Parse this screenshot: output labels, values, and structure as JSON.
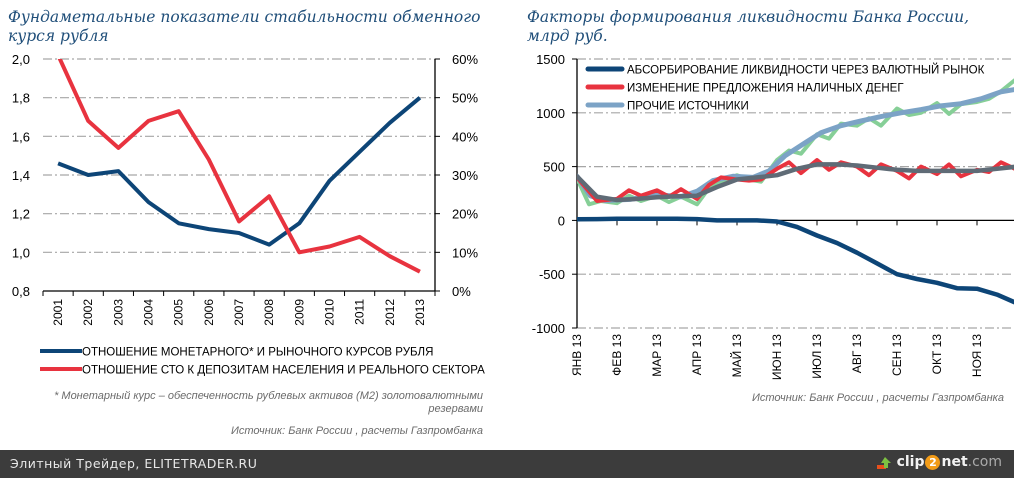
{
  "charts": {
    "left_title": "Фундаметальные показатели стабильности обменного курся рубля",
    "right_title": "Факторы формирования ликвидности Банка России, млрд руб.",
    "footnote": "* Монетарный курс – обеспеченность рублевых активов (М2) золотовалютными резервами",
    "source_left": "Источник: Банк России , расчеты Газпромбанка",
    "source_right": "Источник: Банк России , расчеты Газпромбанка"
  },
  "footer": {
    "site_label": "Элитный Трейдер, ELITETRADER.RU",
    "brand_clip": "clip",
    "brand_two": "2",
    "brand_net": "net",
    "brand_com": ".com"
  },
  "chart_data": [
    {
      "type": "line",
      "title": "Фундаметальные показатели стабильности обменного курся рубля",
      "categories": [
        "2001",
        "2002",
        "2003",
        "2004",
        "2005",
        "2006",
        "2007",
        "2008",
        "2009",
        "2010",
        "2011",
        "2012",
        "2013"
      ],
      "y_left": {
        "ylim": [
          0.8,
          2.0
        ],
        "ticks": [
          "0,8",
          "1,0",
          "1,2",
          "1,4",
          "1,6",
          "1,8",
          "2,0"
        ],
        "tick_values": [
          0.8,
          1.0,
          1.2,
          1.4,
          1.6,
          1.8,
          2.0
        ]
      },
      "y_right": {
        "ylim": [
          0,
          60
        ],
        "ticks": [
          "0%",
          "10%",
          "20%",
          "30%",
          "40%",
          "50%",
          "60%"
        ],
        "tick_values": [
          0,
          10,
          20,
          30,
          40,
          50,
          60
        ]
      },
      "grid": true,
      "legend_position": "bottom",
      "series": [
        {
          "name": "ОТНОШЕНИЕ МОНЕТАРНОГО* И РЫНОЧНОГО КУРСОВ РУБЛЯ",
          "axis": "left",
          "color": "#0d4577",
          "values": [
            1.46,
            1.4,
            1.42,
            1.26,
            1.15,
            1.12,
            1.1,
            1.04,
            1.15,
            1.37,
            1.52,
            1.67,
            1.8
          ]
        },
        {
          "name": "ОТНОШЕНИЕ СТО К ДЕПОЗИТАМ НАСЕЛЕНИЯ И РЕАЛЬНОГО СЕКТОРА",
          "axis": "right",
          "color": "#e8333f",
          "values": [
            61,
            44,
            37,
            44,
            46.5,
            34,
            18,
            24.5,
            10,
            11.5,
            14,
            9,
            5
          ]
        }
      ]
    },
    {
      "type": "line",
      "title": "Факторы формирования ликвидности Банка России, млрд руб.",
      "categories": [
        "ЯНВ 13",
        "ФЕВ 13",
        "МАР 13",
        "АПР 13",
        "МАЙ 13",
        "ИЮН 13",
        "ИЮЛ 13",
        "АВГ 13",
        "СЕН 13",
        "ОКТ 13",
        "НОЯ 13"
      ],
      "x_range": [
        0,
        11
      ],
      "ylim": [
        -1000,
        1500
      ],
      "yticks": [
        "-1000",
        "-500",
        "0",
        "500",
        "1000",
        "1500"
      ],
      "ytick_values": [
        -1000,
        -500,
        0,
        500,
        1000,
        1500
      ],
      "grid": true,
      "legend_position": "top-left",
      "series": [
        {
          "name": "АБСОРБИРОВАНИЕ ЛИКВИДНОСТИ ЧЕРЕЗ ВАЛЮТНЫЙ РЫНОК",
          "color": "#0d4577",
          "legend": true,
          "x": [
            0,
            0.5,
            1,
            1.5,
            2,
            2.5,
            3,
            3.5,
            4,
            4.5,
            5,
            5.5,
            6,
            6.5,
            7,
            7.5,
            8,
            8.5,
            9,
            9.5,
            10,
            10.5,
            11
          ],
          "values": [
            10,
            12,
            15,
            15,
            15,
            15,
            12,
            0,
            0,
            0,
            -10,
            -60,
            -140,
            -210,
            -300,
            -400,
            -500,
            -545,
            -580,
            -630,
            -635,
            -690,
            -770
          ]
        },
        {
          "name": "ИЗМЕНЕНИЕ ПРЕДЛОЖЕНИЯ НАЛИЧНЫХ ДЕНЕГ",
          "color": "#e8333f",
          "legend": true,
          "x": [
            0,
            0.5,
            1,
            1.3,
            1.6,
            2,
            2.3,
            2.6,
            3,
            3.3,
            3.6,
            4,
            4.3,
            4.6,
            5,
            5.3,
            5.6,
            6,
            6.3,
            6.6,
            7,
            7.3,
            7.6,
            8,
            8.3,
            8.6,
            9,
            9.3,
            9.6,
            10,
            10.3,
            10.6,
            11
          ],
          "values": [
            400,
            180,
            200,
            280,
            230,
            280,
            220,
            290,
            200,
            330,
            400,
            380,
            370,
            380,
            480,
            540,
            440,
            560,
            470,
            540,
            500,
            420,
            520,
            460,
            390,
            500,
            430,
            520,
            410,
            470,
            450,
            540,
            470
          ]
        },
        {
          "name": "ИЗМЕНЕНИЕ ПРЕДЛОЖЕНИЯ НАЛИЧНЫХ ДЕНЕГ (сглаженная)",
          "color": "#5f6b76",
          "legend": false,
          "x": [
            0,
            0.5,
            1,
            1.5,
            2,
            2.5,
            3,
            3.5,
            4,
            4.5,
            5,
            5.5,
            6,
            6.5,
            7,
            7.5,
            8,
            8.5,
            9,
            9.5,
            10,
            10.5,
            11
          ],
          "values": [
            410,
            220,
            190,
            200,
            215,
            225,
            230,
            310,
            380,
            400,
            420,
            480,
            520,
            520,
            510,
            490,
            470,
            460,
            460,
            460,
            460,
            480,
            500
          ]
        },
        {
          "name": "ПРОЧИЕ ИСТОЧНИКИ (исходные)",
          "color": "#86cf97",
          "legend": false,
          "x": [
            0,
            0.3,
            0.6,
            1,
            1.3,
            1.6,
            2,
            2.3,
            2.6,
            3,
            3.3,
            3.6,
            4,
            4.3,
            4.6,
            5,
            5.3,
            5.6,
            6,
            6.3,
            6.6,
            7,
            7.3,
            7.6,
            8,
            8.3,
            8.6,
            9,
            9.3,
            9.6,
            10,
            10.3,
            10.6,
            11
          ],
          "values": [
            390,
            150,
            180,
            160,
            230,
            180,
            230,
            170,
            220,
            150,
            300,
            360,
            420,
            380,
            360,
            560,
            650,
            620,
            800,
            760,
            900,
            880,
            950,
            880,
            1040,
            980,
            1000,
            1090,
            990,
            1080,
            1100,
            1130,
            1200,
            1320
          ]
        },
        {
          "name": "ПРОЧИЕ ИСТОЧНИКИ",
          "color": "#7ca3c6",
          "legend": true,
          "x": [
            0,
            0.33,
            0.7,
            1.33,
            2,
            2.6,
            3,
            3.4,
            3.9,
            4.4,
            4.8,
            5.2,
            5.7,
            6.1,
            6.6,
            7.1,
            7.6,
            8.1,
            8.6,
            9.1,
            9.6,
            10.1,
            10.6,
            11
          ],
          "values": [
            410,
            230,
            185,
            195,
            240,
            220,
            270,
            370,
            410,
            400,
            460,
            600,
            720,
            815,
            880,
            925,
            965,
            1000,
            1030,
            1065,
            1085,
            1130,
            1195,
            1220
          ]
        }
      ]
    }
  ]
}
